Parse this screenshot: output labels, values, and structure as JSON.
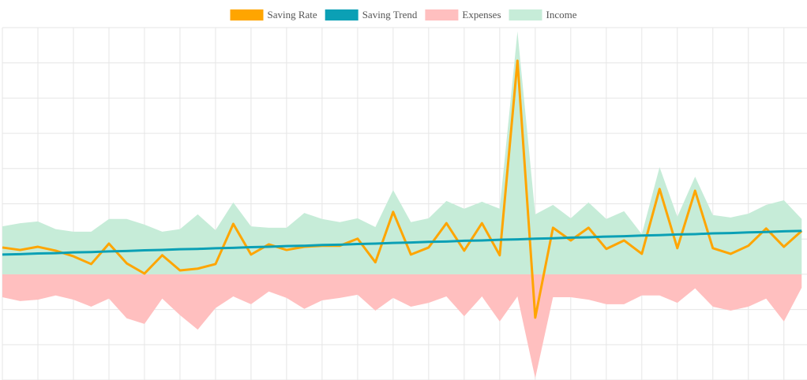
{
  "chart_data": {
    "type": "line",
    "legend": "top",
    "grid": true,
    "x": [
      0,
      1,
      2,
      3,
      4,
      5,
      6,
      7,
      8,
      9,
      10,
      11,
      12,
      13,
      14,
      15,
      16,
      17,
      18,
      19,
      20,
      21,
      22,
      23,
      24,
      25,
      26,
      27,
      28,
      29,
      30,
      31,
      32,
      33,
      34,
      35,
      36,
      37,
      38,
      39,
      40,
      41,
      42,
      43,
      44,
      45
    ],
    "xlim": [
      0,
      45.3
    ],
    "xticks": [
      0,
      2,
      4,
      6,
      8,
      10,
      12,
      14,
      16,
      18,
      20,
      22,
      24,
      26,
      28,
      30,
      32,
      34,
      36,
      38,
      40,
      42,
      44
    ],
    "ylim": [
      -3,
      7
    ],
    "yticks": [
      -3,
      -2,
      -1,
      0,
      1,
      2,
      3,
      4,
      5,
      6,
      7
    ],
    "series": [
      {
        "name": "Saving Rate",
        "kind": "line",
        "color": "#ffa500",
        "values": [
          0.76,
          0.69,
          0.78,
          0.67,
          0.51,
          0.29,
          0.87,
          0.31,
          0.02,
          0.54,
          0.11,
          0.16,
          0.29,
          1.43,
          0.56,
          0.85,
          0.69,
          0.78,
          0.81,
          0.81,
          1.01,
          0.34,
          1.77,
          0.56,
          0.76,
          1.45,
          0.67,
          1.45,
          0.54,
          6.06,
          -1.23,
          1.32,
          0.96,
          1.32,
          0.72,
          0.96,
          0.58,
          2.42,
          0.74,
          2.37,
          0.74,
          0.58,
          0.81,
          1.3,
          0.78,
          1.23
        ]
      },
      {
        "name": "Saving Trend",
        "kind": "line",
        "color": "#0ba0b5",
        "values": [
          0.56,
          0.57,
          0.59,
          0.6,
          0.62,
          0.63,
          0.65,
          0.66,
          0.68,
          0.69,
          0.71,
          0.72,
          0.74,
          0.75,
          0.77,
          0.78,
          0.8,
          0.81,
          0.83,
          0.84,
          0.86,
          0.87,
          0.89,
          0.9,
          0.92,
          0.93,
          0.95,
          0.96,
          0.98,
          0.99,
          1.01,
          1.02,
          1.04,
          1.05,
          1.07,
          1.08,
          1.1,
          1.11,
          1.13,
          1.14,
          1.16,
          1.17,
          1.19,
          1.2,
          1.22,
          1.23
        ]
      },
      {
        "name": "Expenses",
        "kind": "area",
        "color": "#ffbfbf",
        "values": [
          -0.65,
          -0.76,
          -0.72,
          -0.6,
          -0.72,
          -0.92,
          -0.69,
          -1.25,
          -1.41,
          -0.69,
          -1.16,
          -1.57,
          -0.96,
          -0.63,
          -0.85,
          -0.49,
          -0.67,
          -0.98,
          -0.74,
          -0.67,
          -0.58,
          -1.03,
          -0.67,
          -0.92,
          -0.81,
          -0.63,
          -1.19,
          -0.63,
          -1.34,
          -0.63,
          -2.95,
          -0.65,
          -0.65,
          -0.72,
          -0.85,
          -0.85,
          -0.6,
          -0.6,
          -0.81,
          -0.4,
          -0.92,
          -1.03,
          -0.92,
          -0.69,
          -1.34,
          -0.38
        ]
      },
      {
        "name": "Income",
        "kind": "area",
        "color": "#c6ecd8",
        "values": [
          1.36,
          1.45,
          1.5,
          1.28,
          1.21,
          1.21,
          1.57,
          1.57,
          1.41,
          1.21,
          1.28,
          1.7,
          1.25,
          2.04,
          1.36,
          1.32,
          1.32,
          1.74,
          1.57,
          1.48,
          1.59,
          1.34,
          2.39,
          1.48,
          1.59,
          2.08,
          1.86,
          2.06,
          1.86,
          6.89,
          1.7,
          1.97,
          1.59,
          2.04,
          1.57,
          1.79,
          1.14,
          3.04,
          1.63,
          2.77,
          1.68,
          1.61,
          1.72,
          1.97,
          2.1,
          1.57
        ]
      }
    ]
  }
}
